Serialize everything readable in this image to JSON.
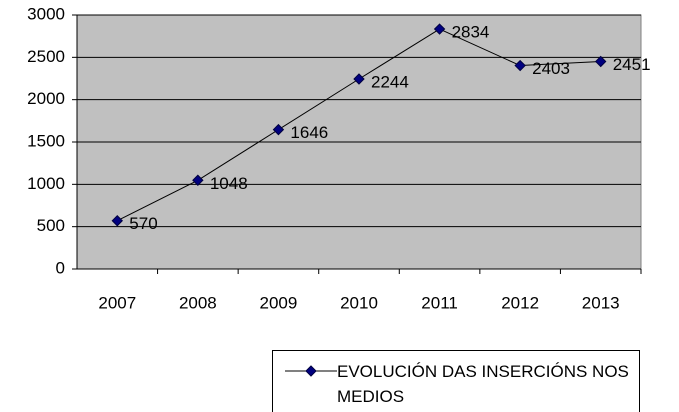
{
  "chart_data": {
    "type": "line",
    "categories": [
      "2007",
      "2008",
      "2009",
      "2010",
      "2011",
      "2012",
      "2013"
    ],
    "series": [
      {
        "name": "EVOLUCIÓN DAS INSERCIÓNS NOS MEDIOS",
        "color": "#000080",
        "values": [
          570,
          1048,
          1646,
          2244,
          2834,
          2403,
          2451
        ]
      }
    ],
    "ylim": [
      0,
      3000
    ],
    "yticks": [
      0,
      500,
      1000,
      1500,
      2000,
      2500,
      3000
    ],
    "grid": true,
    "plot_background": "#c0c0c0",
    "legend": "bottom"
  }
}
